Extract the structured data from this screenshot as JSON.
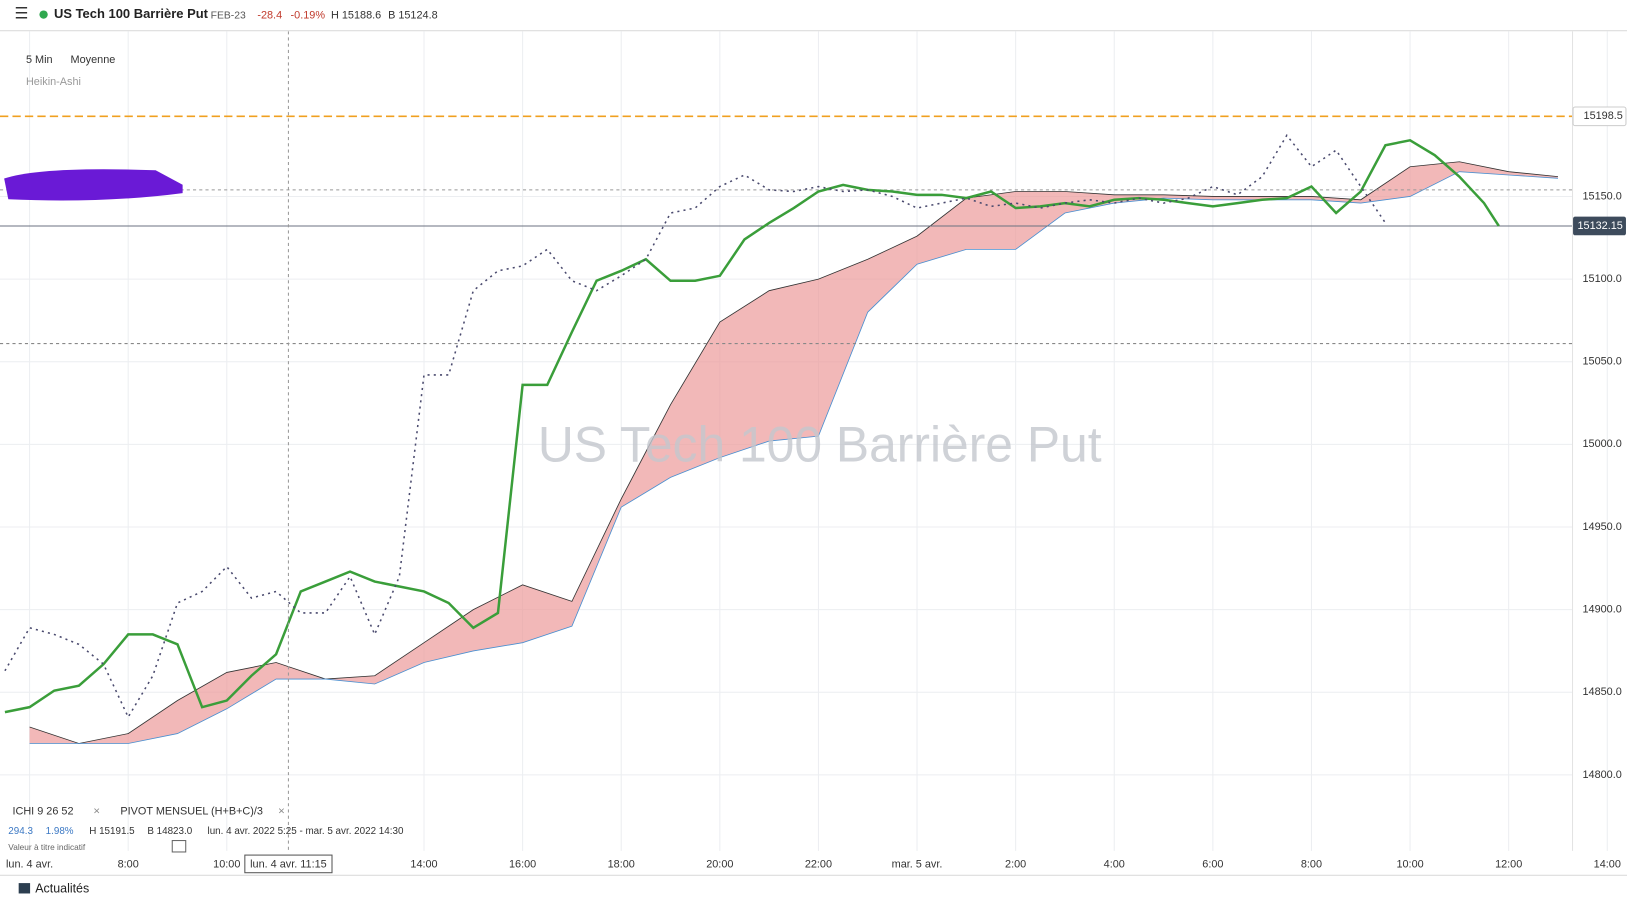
{
  "header": {
    "instrument": "US Tech 100 Barrière Put",
    "contract": "FEB-23",
    "change": "-28.4",
    "change_pct": "-0.19%",
    "high": "H 15188.6",
    "low": "B 15124.8"
  },
  "toolbar": {
    "interval": "5 Min",
    "chart_mode": "Moyenne",
    "candle_type": "Heikin-Ashi"
  },
  "indicators": {
    "ichimoku": "ICHI  9  26  52",
    "pivot": "PIVOT  MENSUEL  (H+B+C)/3",
    "change": "294.3",
    "change_pct": "1.98%",
    "high": "H 15191.5",
    "low": "B 14823.0",
    "range": "lun. 4 avr. 2022 5:25 - mar. 5 avr. 2022 14:30",
    "note": "Valeur à titre indicatif"
  },
  "footer": {
    "news": "Actualités"
  },
  "chart_data": {
    "type": "line",
    "watermark": "US Tech 100 Barrière Put",
    "xlim": [
      5.4,
      38.4
    ],
    "ylim": [
      14754,
      15250
    ],
    "grid": true,
    "xticks": [
      {
        "value": 6,
        "label": "lun. 4 avr."
      },
      {
        "value": 8,
        "label": "8:00"
      },
      {
        "value": 10,
        "label": "10:00"
      },
      {
        "value": 14,
        "label": "14:00"
      },
      {
        "value": 16,
        "label": "16:00"
      },
      {
        "value": 18,
        "label": "18:00"
      },
      {
        "value": 20,
        "label": "20:00"
      },
      {
        "value": 22,
        "label": "22:00"
      },
      {
        "value": 24,
        "label": "mar. 5 avr."
      },
      {
        "value": 26,
        "label": "2:00"
      },
      {
        "value": 28,
        "label": "4:00"
      },
      {
        "value": 30,
        "label": "6:00"
      },
      {
        "value": 32,
        "label": "8:00"
      },
      {
        "value": 34,
        "label": "10:00"
      },
      {
        "value": 36,
        "label": "12:00"
      },
      {
        "value": 38,
        "label": "14:00"
      }
    ],
    "yticks": [
      {
        "value": 14800,
        "label": "14800.0"
      },
      {
        "value": 14850,
        "label": "14850.0"
      },
      {
        "value": 14900,
        "label": "14900.0"
      },
      {
        "value": 14950,
        "label": "14950.0"
      },
      {
        "value": 15000,
        "label": "15000.0"
      },
      {
        "value": 15050,
        "label": "15050.0"
      },
      {
        "value": 15100,
        "label": "15100.0"
      },
      {
        "value": 15150,
        "label": "15150.0"
      }
    ],
    "crosshair": {
      "x": 11.25,
      "label": "lun. 4 avr. 11:15"
    },
    "levels": [
      {
        "value": 15198.5,
        "color": "#f0a020",
        "dash": "8 4",
        "tag": true
      },
      {
        "value": 15154,
        "color": "#999999",
        "dash": "3 3"
      },
      {
        "value": 15061,
        "color": "#888888",
        "dash": "3 3"
      },
      {
        "value": 15132.15,
        "color": "#6b7280",
        "dash": "",
        "tag": true
      }
    ],
    "cloud": {
      "color": "#ec9a9a",
      "x": [
        6,
        7,
        8,
        9,
        10,
        11,
        12,
        13,
        14,
        15,
        16,
        17,
        18,
        19,
        20,
        21,
        22,
        23,
        24,
        25,
        26,
        27,
        28,
        29,
        30,
        31,
        32,
        33,
        34,
        35,
        36,
        37
      ],
      "upper": [
        14829,
        14819,
        14825,
        14845,
        14862,
        14868,
        14858,
        14860,
        14880,
        14900,
        14915,
        14905,
        14967,
        15024,
        15074,
        15093,
        15100,
        15112,
        15126,
        15149,
        15153,
        15153,
        15151,
        15151,
        15150,
        15150,
        15150,
        15148,
        15168,
        15171,
        15165,
        15162
      ],
      "lower": [
        14819,
        14819,
        14819,
        14825,
        14840,
        14858,
        14858,
        14855,
        14868,
        14875,
        14880,
        14890,
        14962,
        14980,
        14992,
        15002,
        15005,
        15080,
        15109,
        15118,
        15118,
        15140,
        15146,
        15149,
        15148,
        15148,
        15148,
        15146,
        15150,
        15165,
        15163,
        15161
      ]
    },
    "series": [
      {
        "color": "#3a9e3a",
        "dash": "",
        "x": [
          5.5,
          6,
          6.5,
          7,
          7.5,
          8,
          8.5,
          9,
          9.5,
          10,
          10.5,
          11,
          11.5,
          12,
          12.5,
          13,
          13.5,
          14,
          14.5,
          15,
          15.5,
          16,
          16.5,
          17,
          17.5,
          18,
          18.5,
          19,
          19.5,
          20,
          20.5,
          21,
          21.5,
          22,
          22.5,
          23,
          23.5,
          24,
          24.5,
          25,
          25.5,
          26,
          26.5,
          27,
          27.5,
          28,
          28.5,
          29,
          29.5,
          30,
          30.5,
          31,
          31.5,
          32,
          32.5,
          33,
          33.5,
          34,
          34.5,
          35,
          35.5,
          35.8
        ],
        "values": [
          14838,
          14841,
          14851,
          14854,
          14867,
          14885,
          14885,
          14879,
          14841,
          14845,
          14860,
          14873,
          14911,
          14917,
          14923,
          14917,
          14914,
          14911,
          14904,
          14889,
          14898,
          15036,
          15036,
          15068,
          15099,
          15105,
          15112,
          15099,
          15099,
          15102,
          15124,
          15134,
          15143,
          15153,
          15157,
          15154,
          15153,
          15151,
          15151,
          15149,
          15153,
          15143,
          15144,
          15146,
          15144,
          15148,
          15149,
          15148,
          15146,
          15144,
          15146,
          15148,
          15149,
          15156,
          15140,
          15153,
          15181,
          15184,
          15175,
          15162,
          15146,
          15132.15
        ]
      },
      {
        "color": "#4a4a6e",
        "dash": "2 4",
        "x": [
          5.5,
          6,
          6.5,
          7,
          7.5,
          8,
          8.5,
          9,
          9.5,
          10,
          10.5,
          11,
          11.5,
          12,
          12.5,
          13,
          13.5,
          14,
          14.5,
          15,
          15.5,
          16,
          16.5,
          17,
          17.5,
          18,
          18.5,
          19,
          19.5,
          20,
          20.5,
          21,
          21.5,
          22,
          22.5,
          23,
          23.5,
          24,
          24.5,
          25,
          25.5,
          26,
          26.5,
          27,
          27.5,
          28,
          28.5,
          29,
          29.5,
          30,
          30.5,
          31,
          31.5,
          32,
          32.5,
          33,
          33.5
        ],
        "values": [
          14863,
          14889,
          14885,
          14879,
          14867,
          14835,
          14860,
          14904,
          14911,
          14926,
          14907,
          14911,
          14898,
          14898,
          14920,
          14885,
          14920,
          15042,
          15042,
          15093,
          15105,
          15108,
          15118,
          15099,
          15093,
          15102,
          15112,
          15140,
          15143,
          15156,
          15163,
          15154,
          15153,
          15156,
          15153,
          15154,
          15150,
          15143,
          15146,
          15149,
          15144,
          15146,
          15143,
          15146,
          15148,
          15146,
          15149,
          15146,
          15149,
          15156,
          15151,
          15162,
          15187,
          15168,
          15178,
          15156,
          15134
        ]
      }
    ]
  }
}
